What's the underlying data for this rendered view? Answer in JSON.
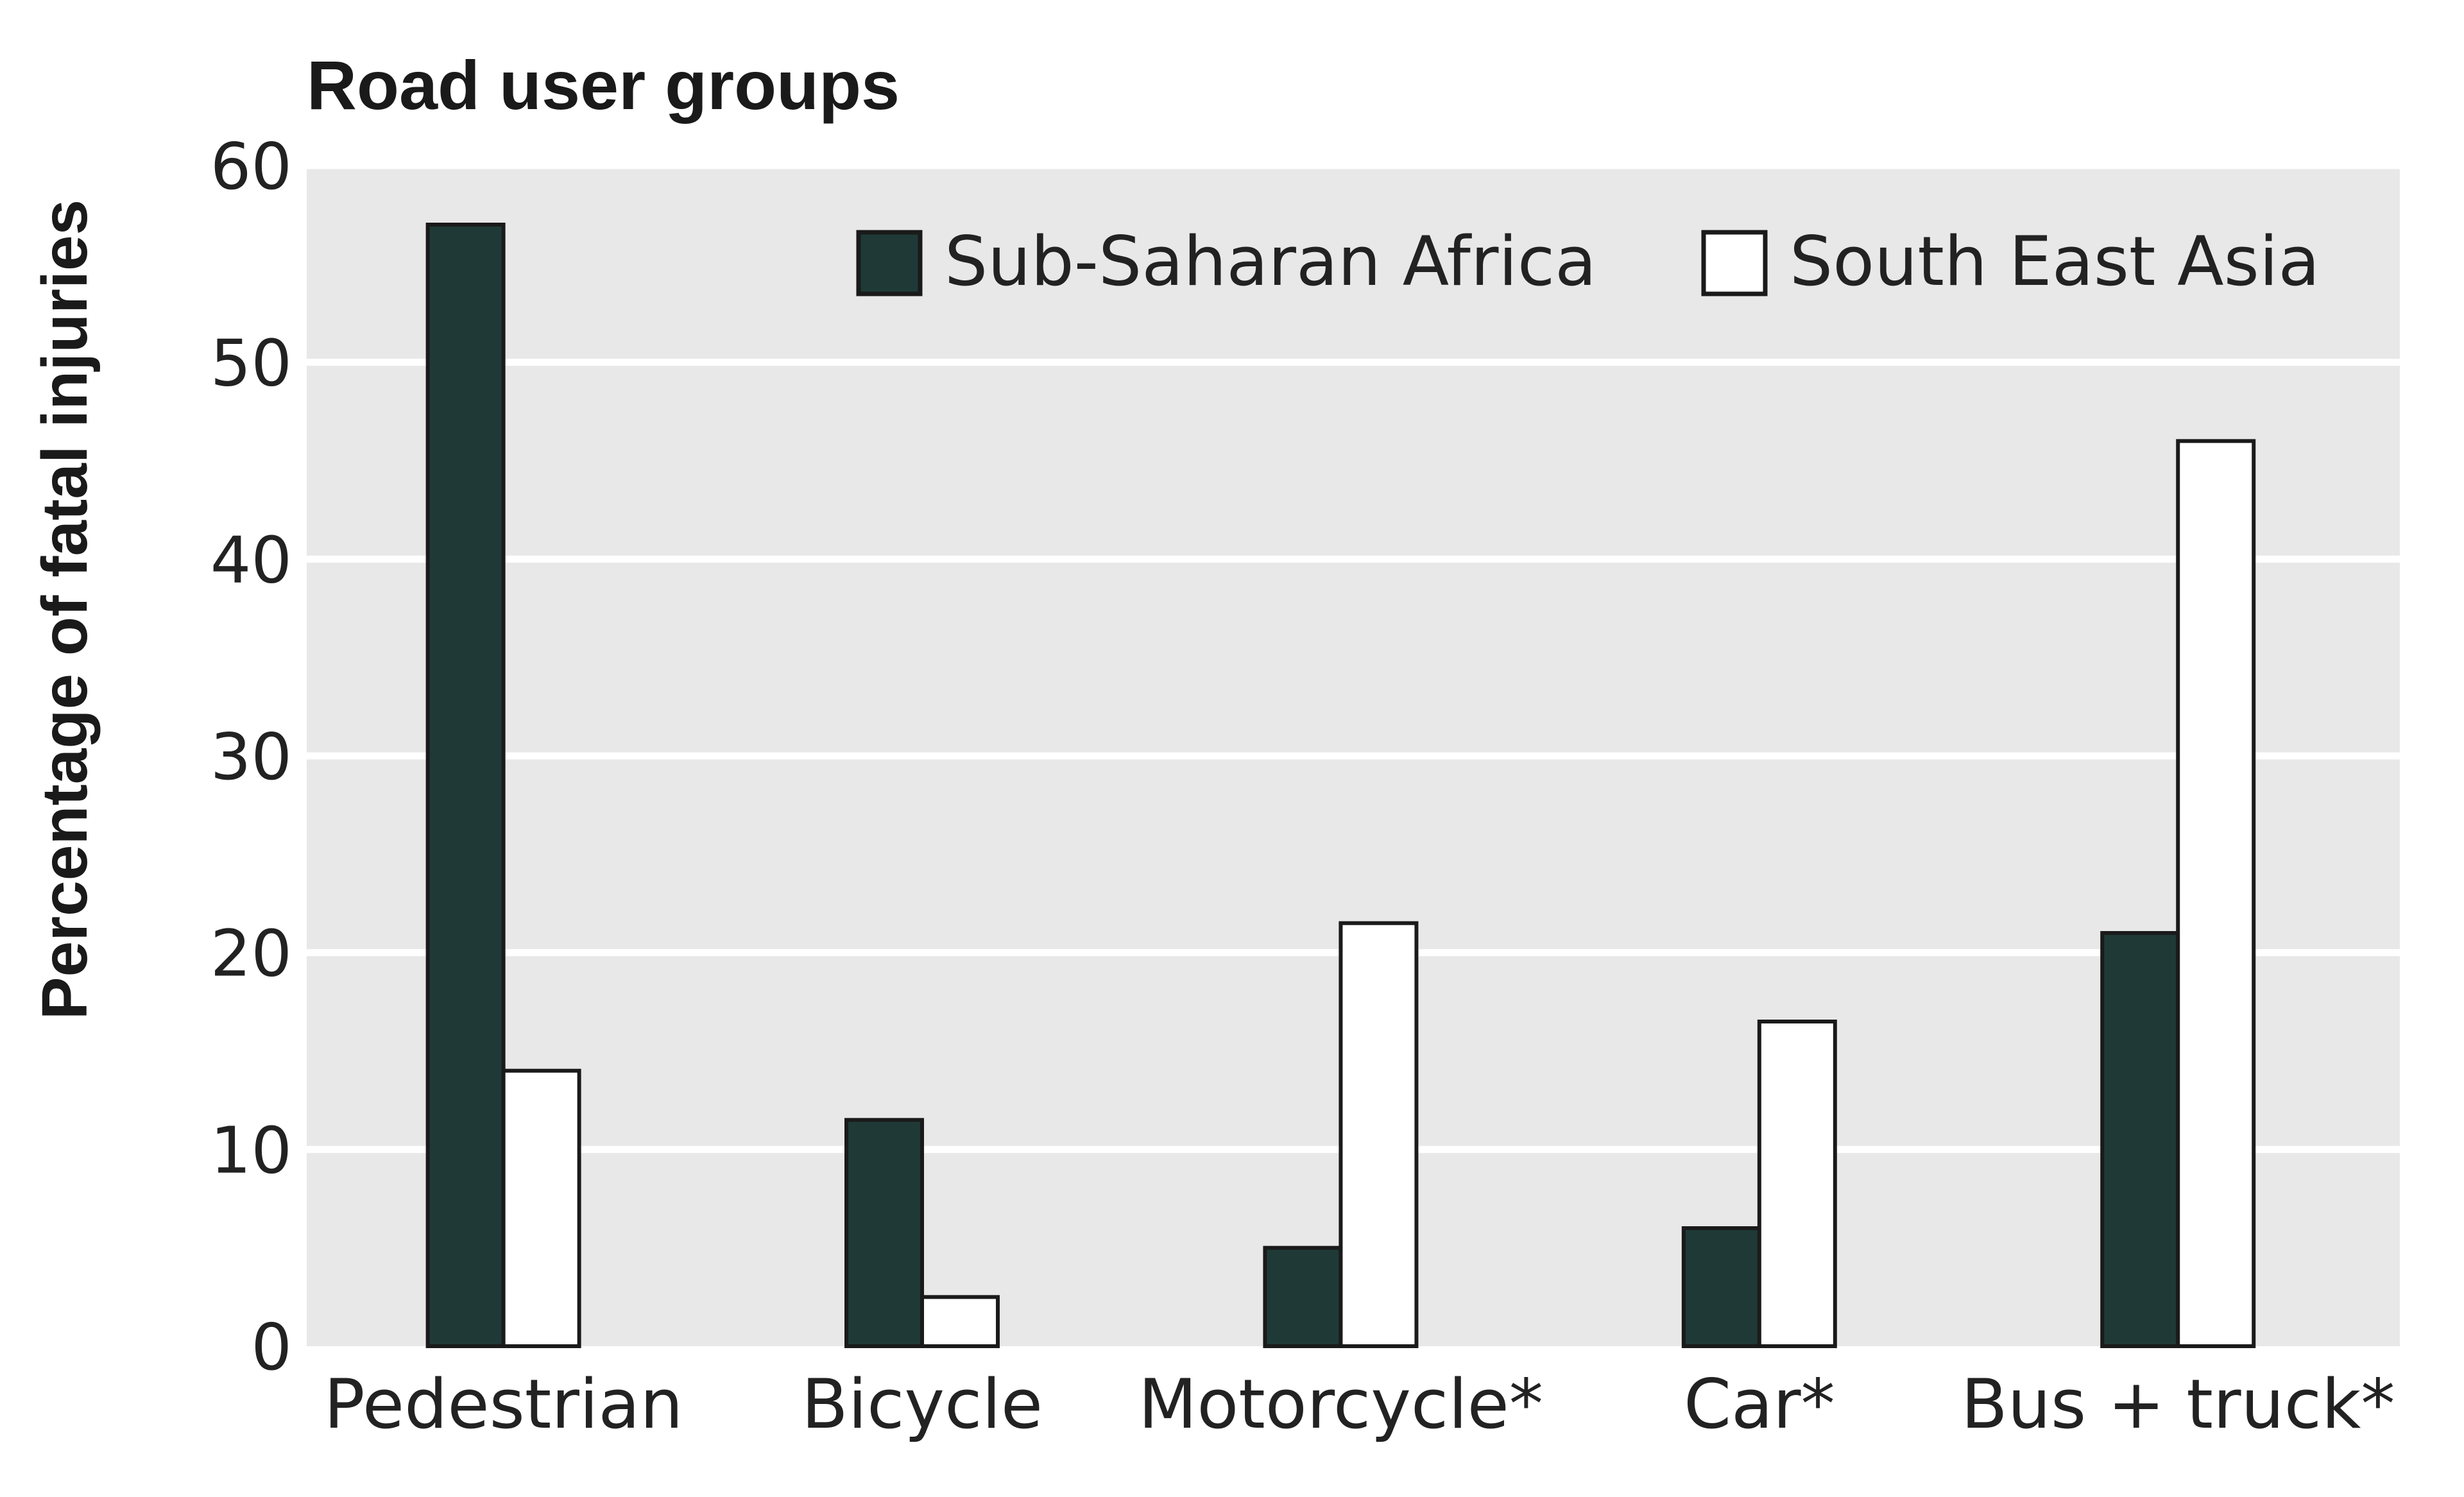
{
  "chart_data": {
    "type": "bar",
    "title": "Road user groups",
    "xlabel": "",
    "ylabel": "Percentage of fatal injuries",
    "ylim": [
      0,
      60
    ],
    "yticks": [
      0,
      10,
      20,
      30,
      40,
      50,
      60
    ],
    "grid": true,
    "legend_position": "top-right",
    "categories": [
      "Pedestrian",
      "Bicycle",
      "Motorcycle*",
      "Car*",
      "Bus + truck*"
    ],
    "series": [
      {
        "name": "Sub-Saharan Africa",
        "color": "#1f3a36",
        "values": [
          57,
          11.5,
          5,
          6,
          21
        ]
      },
      {
        "name": "South East Asia",
        "color": "#ffffff",
        "values": [
          14,
          2.5,
          21.5,
          16.5,
          46
        ]
      }
    ],
    "colors": {
      "plot_bg": "#e8e8e8",
      "grid": "#ffffff",
      "bar_stroke": "#1a1a1a"
    }
  }
}
